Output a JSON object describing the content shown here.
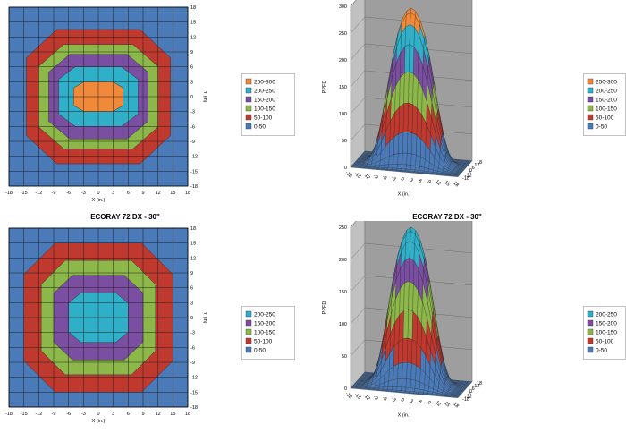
{
  "charts": [
    {
      "title": "",
      "contour": {
        "xlabel": "X (in.)",
        "ylabel": "Y (in)",
        "ticks": [
          -18,
          -15,
          -12,
          -9,
          -6,
          -3,
          0,
          3,
          6,
          9,
          12,
          15,
          18
        ]
      },
      "surface": {
        "zlabel": "PPFD",
        "xlabel": "X (in.)",
        "zticks": [
          0,
          50,
          100,
          150,
          200,
          250,
          300
        ],
        "xticks": [
          -18,
          -15,
          -12,
          -9,
          -6,
          -3,
          0,
          3,
          6,
          9,
          12,
          15,
          18
        ],
        "yticks": [
          -18,
          -12,
          -6,
          0,
          6,
          12,
          18
        ]
      },
      "legend": [
        "250-300",
        "200-250",
        "150-200",
        "100-150",
        "50-100",
        "0-50"
      ]
    },
    {
      "title": "ECORAY 72 DX - 30\"",
      "contour": {
        "xlabel": "X (in.)",
        "ylabel": "Y (in)",
        "ticks": [
          -18,
          -15,
          -12,
          -9,
          -6,
          -3,
          0,
          3,
          6,
          9,
          12,
          15,
          18
        ]
      },
      "surface": {
        "zlabel": "PPFD",
        "xlabel": "X (in.)",
        "zticks": [
          0,
          50,
          100,
          150,
          200,
          250
        ],
        "xticks": [
          -18,
          -15,
          -12,
          -9,
          -6,
          -3,
          0,
          3,
          6,
          9,
          12,
          15,
          18
        ],
        "yticks": [
          -18,
          -12,
          -6,
          0,
          6,
          12,
          18
        ]
      },
      "legend": [
        "200-250",
        "150-200",
        "100-150",
        "50-100",
        "0-50"
      ]
    }
  ],
  "colors": {
    "0-50": "#4a7ab8",
    "50-100": "#c0392f",
    "100-150": "#8cb84a",
    "150-200": "#7a4ea0",
    "200-250": "#2fb0c8",
    "250-300": "#f08a3a",
    "grid": "#222222",
    "wall": "#c0c0c0",
    "wall_back": "#9e9e9e"
  },
  "chart_data": [
    {
      "type": "heatmap",
      "title": "",
      "xlabel": "X (in.)",
      "ylabel": "Y (in)",
      "zlabel": "PPFD",
      "x_range": [
        -18,
        18
      ],
      "y_range": [
        -18,
        18
      ],
      "z_range": [
        0,
        300
      ],
      "levels": [
        "0-50",
        "50-100",
        "100-150",
        "150-200",
        "200-250",
        "250-300"
      ],
      "peak_ppfd": 290,
      "contour_radii_x": {
        "50": 14.5,
        "100": 12,
        "150": 10,
        "200": 8,
        "250": 5
      },
      "contour_radii_y": {
        "50": 13.5,
        "100": 10.5,
        "150": 8.5,
        "200": 6,
        "250": 3
      }
    },
    {
      "type": "heatmap",
      "title": "ECORAY 72 DX - 30\"",
      "xlabel": "X (in.)",
      "ylabel": "Y (in)",
      "zlabel": "PPFD",
      "x_range": [
        -18,
        18
      ],
      "y_range": [
        -18,
        18
      ],
      "z_range": [
        0,
        250
      ],
      "levels": [
        "0-50",
        "50-100",
        "100-150",
        "150-200",
        "200-250"
      ],
      "peak_ppfd": 245,
      "contour_radii_x": {
        "50": 15,
        "100": 11.5,
        "150": 9,
        "200": 6
      },
      "contour_radii_y": {
        "50": 15,
        "100": 11.5,
        "150": 8.5,
        "200": 5
      }
    }
  ]
}
